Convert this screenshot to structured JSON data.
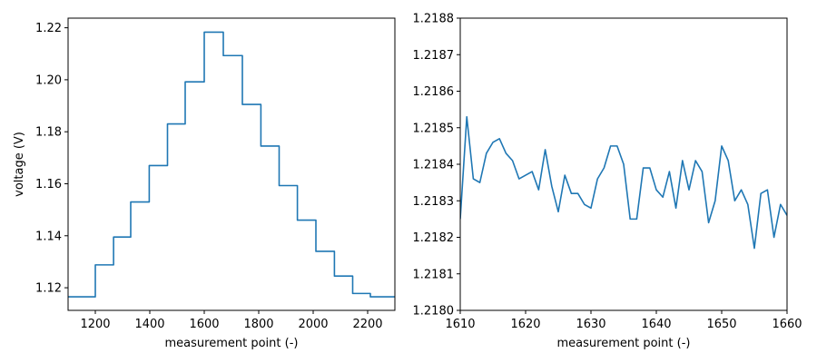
{
  "chart_data": [
    {
      "type": "line",
      "xlabel": "measurement point (-)",
      "ylabel": "voltage (V)",
      "xlim": [
        1100,
        2300
      ],
      "ylim": [
        1.1113,
        1.2237
      ],
      "xticks": [
        1200,
        1400,
        1600,
        1800,
        2000,
        2200
      ],
      "yticks": [
        1.12,
        1.14,
        1.16,
        1.18,
        1.2,
        1.22
      ],
      "xtick_labels": [
        "1200",
        "1400",
        "1600",
        "1800",
        "2000",
        "2200"
      ],
      "ytick_labels": [
        "1.12",
        "1.14",
        "1.16",
        "1.18",
        "1.20",
        "1.22"
      ],
      "grid": false,
      "series": [
        {
          "color": "#1f77b4",
          "steps": [
            {
              "x_start": 1100,
              "x_end": 1200,
              "y": 1.1165
            },
            {
              "x_start": 1200,
              "x_end": 1267,
              "y": 1.1288
            },
            {
              "x_start": 1267,
              "x_end": 1330,
              "y": 1.1395
            },
            {
              "x_start": 1330,
              "x_end": 1398,
              "y": 1.153
            },
            {
              "x_start": 1398,
              "x_end": 1465,
              "y": 1.167
            },
            {
              "x_start": 1465,
              "x_end": 1530,
              "y": 1.183
            },
            {
              "x_start": 1530,
              "x_end": 1600,
              "y": 1.1992
            },
            {
              "x_start": 1600,
              "x_end": 1670,
              "y": 1.2183
            },
            {
              "x_start": 1670,
              "x_end": 1740,
              "y": 1.2093
            },
            {
              "x_start": 1740,
              "x_end": 1808,
              "y": 1.1905
            },
            {
              "x_start": 1808,
              "x_end": 1875,
              "y": 1.1745
            },
            {
              "x_start": 1875,
              "x_end": 1942,
              "y": 1.1593
            },
            {
              "x_start": 1942,
              "x_end": 2010,
              "y": 1.146
            },
            {
              "x_start": 2010,
              "x_end": 2078,
              "y": 1.134
            },
            {
              "x_start": 2078,
              "x_end": 2145,
              "y": 1.1245
            },
            {
              "x_start": 2145,
              "x_end": 2210,
              "y": 1.1178
            },
            {
              "x_start": 2210,
              "x_end": 2300,
              "y": 1.1165
            }
          ]
        }
      ]
    },
    {
      "type": "line",
      "xlabel": "measurement point (-)",
      "ylabel": "",
      "xlim": [
        1610,
        1660
      ],
      "ylim": [
        1.218,
        1.2188
      ],
      "xticks": [
        1610,
        1620,
        1630,
        1640,
        1650,
        1660
      ],
      "yticks": [
        1.218,
        1.2181,
        1.2182,
        1.2183,
        1.2184,
        1.2185,
        1.2186,
        1.2187,
        1.2188
      ],
      "xtick_labels": [
        "1610",
        "1620",
        "1630",
        "1640",
        "1650",
        "1660"
      ],
      "ytick_labels": [
        "1.2180",
        "1.2181",
        "1.2182",
        "1.2183",
        "1.2184",
        "1.2185",
        "1.2186",
        "1.2187",
        "1.2188"
      ],
      "grid": false,
      "series": [
        {
          "color": "#1f77b4",
          "x": [
            1610,
            1611,
            1612,
            1613,
            1614,
            1615,
            1616,
            1617,
            1618,
            1619,
            1620,
            1621,
            1622,
            1623,
            1624,
            1625,
            1626,
            1627,
            1628,
            1629,
            1630,
            1631,
            1632,
            1633,
            1634,
            1635,
            1636,
            1637,
            1638,
            1639,
            1640,
            1641,
            1642,
            1643,
            1644,
            1645,
            1646,
            1647,
            1648,
            1649,
            1650,
            1651,
            1652,
            1653,
            1654,
            1655,
            1656,
            1657,
            1658,
            1659,
            1660
          ],
          "y": [
            1.21825,
            1.21853,
            1.21836,
            1.21835,
            1.21843,
            1.21846,
            1.21847,
            1.21843,
            1.21841,
            1.21836,
            1.21837,
            1.21838,
            1.21833,
            1.21844,
            1.21834,
            1.21827,
            1.21837,
            1.21832,
            1.21832,
            1.21829,
            1.21828,
            1.21836,
            1.21839,
            1.21845,
            1.21845,
            1.2184,
            1.21825,
            1.21825,
            1.21839,
            1.21839,
            1.21833,
            1.21831,
            1.21838,
            1.21828,
            1.21841,
            1.21833,
            1.21841,
            1.21838,
            1.21824,
            1.2183,
            1.21845,
            1.21841,
            1.2183,
            1.21833,
            1.21829,
            1.21817,
            1.21832,
            1.21833,
            1.2182,
            1.21829,
            1.21826
          ]
        }
      ]
    }
  ]
}
